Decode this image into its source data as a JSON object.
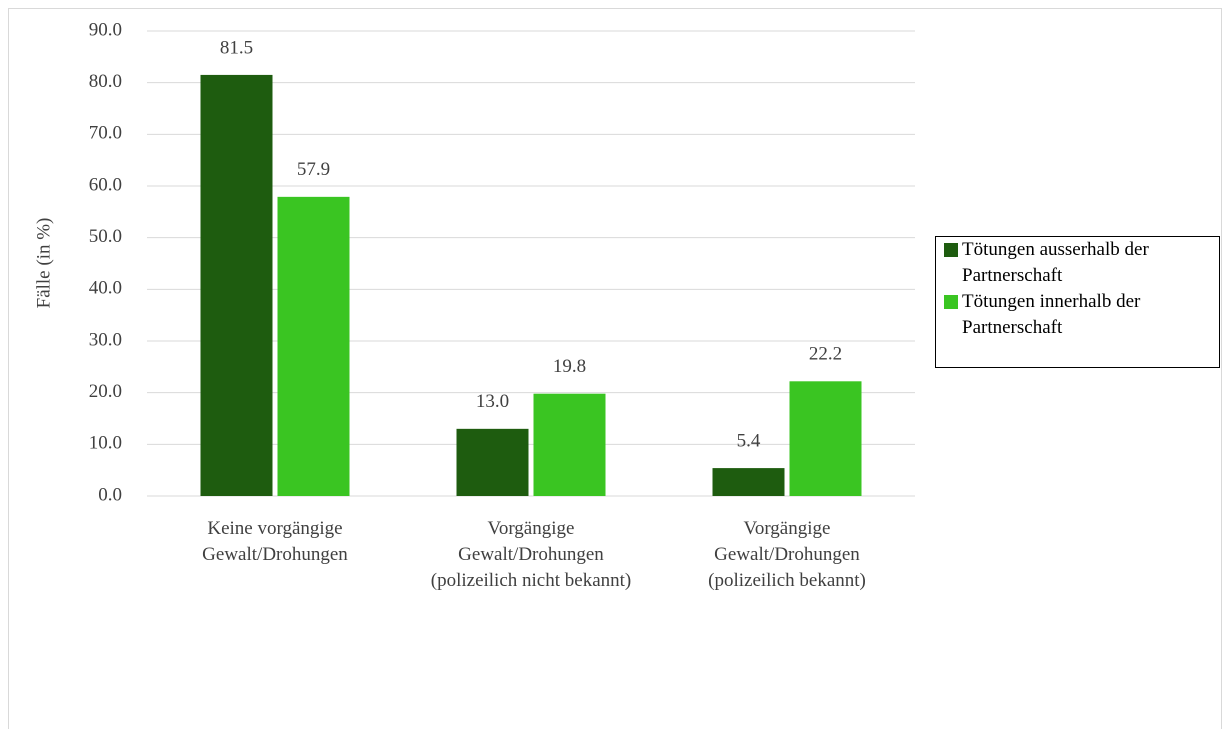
{
  "chart_data": {
    "type": "bar",
    "y_label": "Fälle (in %)",
    "categories": [
      "Keine vorgängige Gewalt/Drohungen",
      "Vorgängige Gewalt/Drohungen (polizeilich nicht bekannt)",
      "Vorgängige Gewalt/Drohungen (polizeilich bekannt)"
    ],
    "series": [
      {
        "name": "Tötungen ausserhalb der Partnerschaft",
        "color": "#1e5c0f",
        "values": [
          81.5,
          13.0,
          5.4
        ],
        "value_labels": [
          "81.5",
          "13.0",
          "5.4"
        ]
      },
      {
        "name": "Tötungen innerhalb der Partnerschaft",
        "color": "#3ac522",
        "values": [
          57.9,
          19.8,
          22.2
        ],
        "value_labels": [
          "57.9",
          "19.8",
          "22.2"
        ]
      }
    ],
    "ylim": [
      0,
      90
    ],
    "yticks": [
      {
        "value": 0,
        "label": "0.0"
      },
      {
        "value": 10,
        "label": "10.0"
      },
      {
        "value": 20,
        "label": "20.0"
      },
      {
        "value": 30,
        "label": "30.0"
      },
      {
        "value": 40,
        "label": "40.0"
      },
      {
        "value": 50,
        "label": "50.0"
      },
      {
        "value": 60,
        "label": "60.0"
      },
      {
        "value": 70,
        "label": "70.0"
      },
      {
        "value": 80,
        "label": "80.0"
      },
      {
        "value": 90,
        "label": "90.0"
      }
    ],
    "grid": true,
    "legend": "right"
  }
}
